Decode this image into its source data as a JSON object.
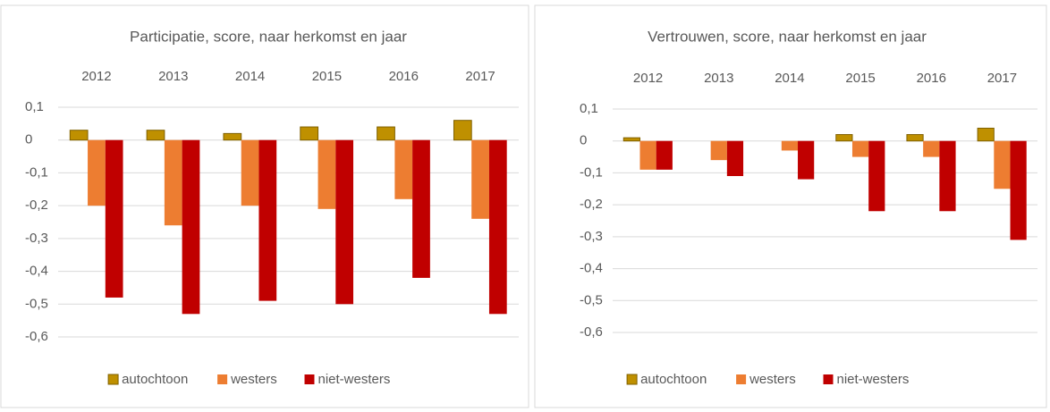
{
  "chart_data": [
    {
      "type": "bar",
      "title": "Participatie, score,  naar herkomst en jaar",
      "categories": [
        "2012",
        "2013",
        "2014",
        "2015",
        "2016",
        "2017"
      ],
      "series": [
        {
          "name": "autochtoon",
          "color": "#bf9000",
          "values": [
            0.03,
            0.03,
            0.02,
            0.04,
            0.04,
            0.06
          ]
        },
        {
          "name": "westers",
          "color": "#ed7d31",
          "values": [
            -0.2,
            -0.26,
            -0.2,
            -0.21,
            -0.18,
            -0.24
          ]
        },
        {
          "name": "niet-westers",
          "color": "#c00000",
          "values": [
            -0.48,
            -0.53,
            -0.49,
            -0.5,
            -0.42,
            -0.53
          ]
        }
      ],
      "ylim": [
        -0.6,
        0.1
      ],
      "yticks": [
        {
          "value": 0.1,
          "label": "0,1"
        },
        0,
        {
          "value": -0.1,
          "label": "-0,1"
        },
        {
          "value": -0.2,
          "label": "-0,2"
        },
        {
          "value": -0.3,
          "label": "-0,3"
        },
        {
          "value": -0.4,
          "label": "-0,4"
        },
        {
          "value": -0.5,
          "label": "-0,5"
        },
        {
          "value": -0.6,
          "label": "-0,6"
        }
      ],
      "grid": true,
      "legend": "bottom"
    },
    {
      "type": "bar",
      "title": "Vertrouwen, score, naar herkomst en jaar",
      "categories": [
        "2012",
        "2013",
        "2014",
        "2015",
        "2016",
        "2017"
      ],
      "series": [
        {
          "name": "autochtoon",
          "color": "#bf9000",
          "values": [
            0.01,
            0,
            0,
            0.02,
            0.02,
            0.04
          ]
        },
        {
          "name": "westers",
          "color": "#ed7d31",
          "values": [
            -0.09,
            -0.06,
            -0.03,
            -0.05,
            -0.05,
            -0.15
          ]
        },
        {
          "name": "niet-westers",
          "color": "#c00000",
          "values": [
            -0.09,
            -0.11,
            -0.12,
            -0.22,
            -0.22,
            -0.31
          ]
        }
      ],
      "ylim": [
        -0.6,
        0.1
      ],
      "yticks": [
        {
          "value": 0.1,
          "label": "0,1"
        },
        0,
        {
          "value": -0.1,
          "label": "-0,1"
        },
        {
          "value": -0.2,
          "label": "-0,2"
        },
        {
          "value": -0.3,
          "label": "-0,3"
        },
        {
          "value": -0.4,
          "label": "-0,4"
        },
        {
          "value": -0.5,
          "label": "-0,5"
        },
        {
          "value": -0.6,
          "label": "-0,6"
        }
      ],
      "grid": true,
      "legend": "bottom"
    }
  ]
}
